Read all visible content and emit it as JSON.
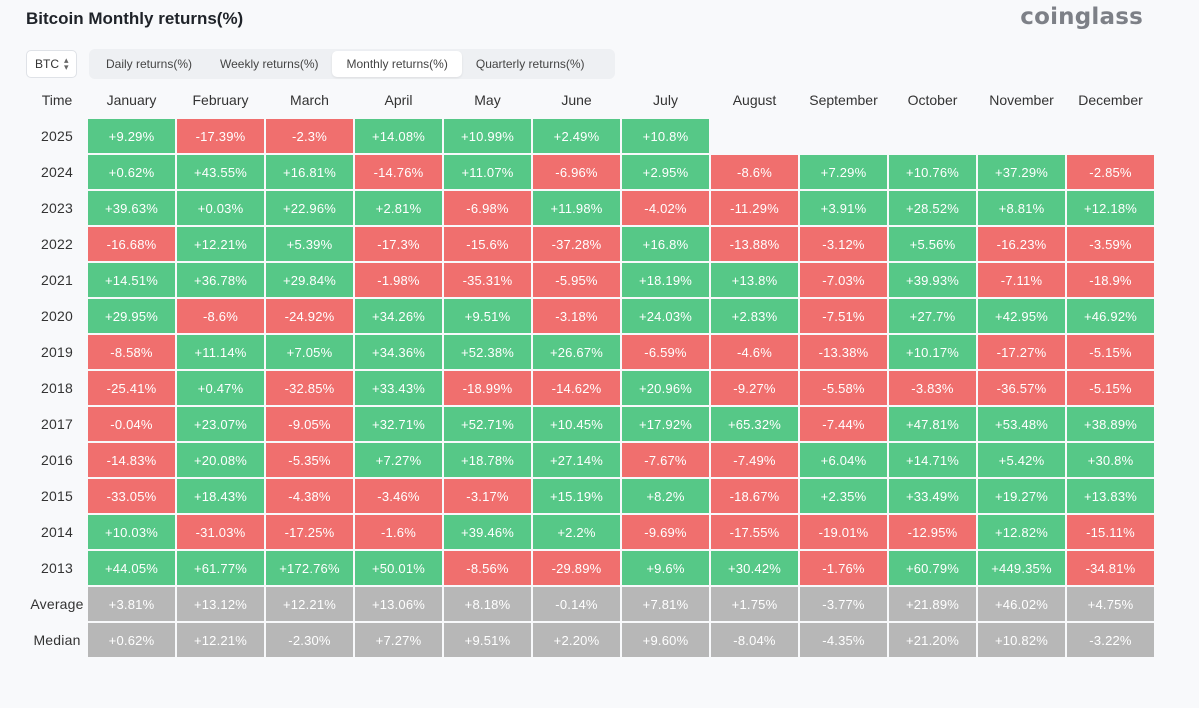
{
  "title": "Bitcoin Monthly returns(%)",
  "brand": "coinglass",
  "colors": {
    "positive": "#56c887",
    "negative": "#f06f6e",
    "stat": "#b7b7b7"
  },
  "asset_select": {
    "value": "BTC",
    "icon": "chevron-up-down-icon"
  },
  "tabs": [
    {
      "label": "Daily returns(%)",
      "active": false
    },
    {
      "label": "Weekly returns(%)",
      "active": false
    },
    {
      "label": "Monthly returns(%)",
      "active": true
    },
    {
      "label": "Quarterly returns(%)",
      "active": false
    }
  ],
  "table": {
    "columns": [
      "Time",
      "January",
      "February",
      "March",
      "April",
      "May",
      "June",
      "July",
      "August",
      "September",
      "October",
      "November",
      "December"
    ],
    "rows": [
      {
        "label": "2025",
        "values": [
          "+9.29%",
          "-17.39%",
          "-2.3%",
          "+14.08%",
          "+10.99%",
          "+2.49%",
          "+10.8%",
          "",
          "",
          "",
          "",
          ""
        ]
      },
      {
        "label": "2024",
        "values": [
          "+0.62%",
          "+43.55%",
          "+16.81%",
          "-14.76%",
          "+11.07%",
          "-6.96%",
          "+2.95%",
          "-8.6%",
          "+7.29%",
          "+10.76%",
          "+37.29%",
          "-2.85%"
        ]
      },
      {
        "label": "2023",
        "values": [
          "+39.63%",
          "+0.03%",
          "+22.96%",
          "+2.81%",
          "-6.98%",
          "+11.98%",
          "-4.02%",
          "-11.29%",
          "+3.91%",
          "+28.52%",
          "+8.81%",
          "+12.18%"
        ]
      },
      {
        "label": "2022",
        "values": [
          "-16.68%",
          "+12.21%",
          "+5.39%",
          "-17.3%",
          "-15.6%",
          "-37.28%",
          "+16.8%",
          "-13.88%",
          "-3.12%",
          "+5.56%",
          "-16.23%",
          "-3.59%"
        ]
      },
      {
        "label": "2021",
        "values": [
          "+14.51%",
          "+36.78%",
          "+29.84%",
          "-1.98%",
          "-35.31%",
          "-5.95%",
          "+18.19%",
          "+13.8%",
          "-7.03%",
          "+39.93%",
          "-7.11%",
          "-18.9%"
        ]
      },
      {
        "label": "2020",
        "values": [
          "+29.95%",
          "-8.6%",
          "-24.92%",
          "+34.26%",
          "+9.51%",
          "-3.18%",
          "+24.03%",
          "+2.83%",
          "-7.51%",
          "+27.7%",
          "+42.95%",
          "+46.92%"
        ]
      },
      {
        "label": "2019",
        "values": [
          "-8.58%",
          "+11.14%",
          "+7.05%",
          "+34.36%",
          "+52.38%",
          "+26.67%",
          "-6.59%",
          "-4.6%",
          "-13.38%",
          "+10.17%",
          "-17.27%",
          "-5.15%"
        ]
      },
      {
        "label": "2018",
        "values": [
          "-25.41%",
          "+0.47%",
          "-32.85%",
          "+33.43%",
          "-18.99%",
          "-14.62%",
          "+20.96%",
          "-9.27%",
          "-5.58%",
          "-3.83%",
          "-36.57%",
          "-5.15%"
        ]
      },
      {
        "label": "2017",
        "values": [
          "-0.04%",
          "+23.07%",
          "-9.05%",
          "+32.71%",
          "+52.71%",
          "+10.45%",
          "+17.92%",
          "+65.32%",
          "-7.44%",
          "+47.81%",
          "+53.48%",
          "+38.89%"
        ]
      },
      {
        "label": "2016",
        "values": [
          "-14.83%",
          "+20.08%",
          "-5.35%",
          "+7.27%",
          "+18.78%",
          "+27.14%",
          "-7.67%",
          "-7.49%",
          "+6.04%",
          "+14.71%",
          "+5.42%",
          "+30.8%"
        ]
      },
      {
        "label": "2015",
        "values": [
          "-33.05%",
          "+18.43%",
          "-4.38%",
          "-3.46%",
          "-3.17%",
          "+15.19%",
          "+8.2%",
          "-18.67%",
          "+2.35%",
          "+33.49%",
          "+19.27%",
          "+13.83%"
        ]
      },
      {
        "label": "2014",
        "values": [
          "+10.03%",
          "-31.03%",
          "-17.25%",
          "-1.6%",
          "+39.46%",
          "+2.2%",
          "-9.69%",
          "-17.55%",
          "-19.01%",
          "-12.95%",
          "+12.82%",
          "-15.11%"
        ]
      },
      {
        "label": "2013",
        "values": [
          "+44.05%",
          "+61.77%",
          "+172.76%",
          "+50.01%",
          "-8.56%",
          "-29.89%",
          "+9.6%",
          "+30.42%",
          "-1.76%",
          "+60.79%",
          "+449.35%",
          "-34.81%"
        ]
      }
    ],
    "summary": [
      {
        "label": "Average",
        "values": [
          "+3.81%",
          "+13.12%",
          "+12.21%",
          "+13.06%",
          "+8.18%",
          "-0.14%",
          "+7.81%",
          "+1.75%",
          "-3.77%",
          "+21.89%",
          "+46.02%",
          "+4.75%"
        ]
      },
      {
        "label": "Median",
        "values": [
          "+0.62%",
          "+12.21%",
          "-2.30%",
          "+7.27%",
          "+9.51%",
          "+2.20%",
          "+9.60%",
          "-8.04%",
          "-4.35%",
          "+21.20%",
          "+10.82%",
          "-3.22%"
        ]
      }
    ]
  }
}
